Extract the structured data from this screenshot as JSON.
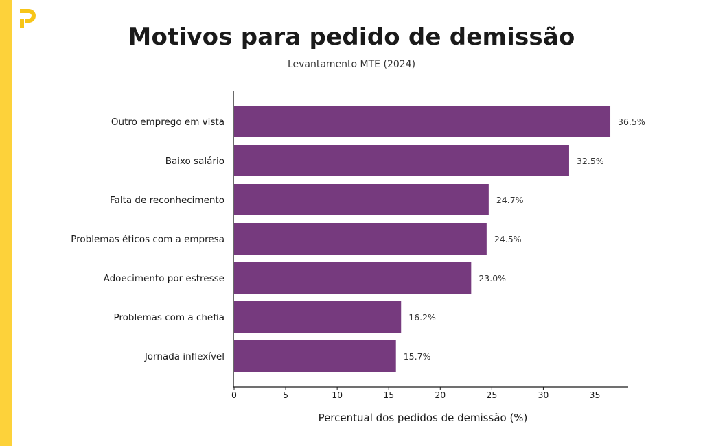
{
  "colors": {
    "accent_band": "#fdd23a",
    "logo": "#f7c518",
    "bar": "#763a7e",
    "axis": "#1a1a1a"
  },
  "logo_icon": "brand-p-icon",
  "chart_data": {
    "type": "bar",
    "orientation": "horizontal",
    "title": "Motivos para pedido de demissão",
    "subtitle": "Levantamento MTE (2024)",
    "xlabel": "Percentual dos pedidos de demissão (%)",
    "ylabel": "",
    "xlim": [
      0,
      38
    ],
    "xticks": [
      0,
      5,
      10,
      15,
      20,
      25,
      30,
      35
    ],
    "categories": [
      "Outro emprego em vista",
      "Baixo salário",
      "Falta de reconhecimento",
      "Problemas éticos com a empresa",
      "Adoecimento por estresse",
      "Problemas com a chefia",
      "Jornada inflexível"
    ],
    "values": [
      36.5,
      32.5,
      24.7,
      24.5,
      23.0,
      16.2,
      15.7
    ],
    "value_labels": [
      "36.5%",
      "32.5%",
      "24.7%",
      "24.5%",
      "23.0%",
      "16.2%",
      "15.7%"
    ],
    "grid": false
  }
}
